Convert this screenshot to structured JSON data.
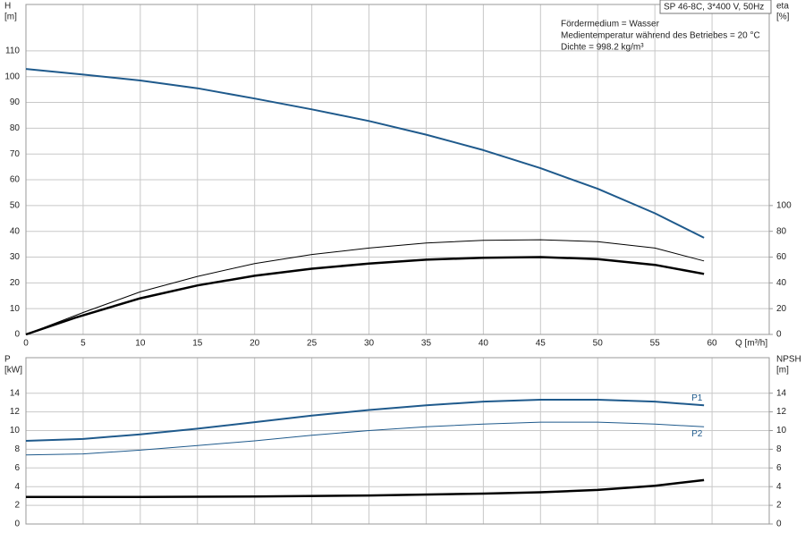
{
  "chart_data": [
    {
      "type": "line",
      "title": "SP 46-8C, 3*400 V, 50Hz",
      "annotations": [
        "Fördermedium = Wasser",
        "Medientemperatur während des Betriebes = 20 °C",
        "Dichte = 998.2 kg/m³"
      ],
      "y_label": "H",
      "y_unit": "[m]",
      "y2_label": "eta",
      "y2_unit": "[%]",
      "x_label": "Q [m³/h]",
      "xlim": [
        0,
        65
      ],
      "ylim": [
        0,
        128
      ],
      "y2lim": [
        0,
        256
      ],
      "xticks": [
        0,
        5,
        10,
        15,
        20,
        25,
        30,
        35,
        40,
        45,
        50,
        55,
        60
      ],
      "yticks": [
        0,
        10,
        20,
        30,
        40,
        50,
        60,
        70,
        80,
        90,
        100,
        110
      ],
      "y2ticks": [
        0,
        20,
        40,
        60,
        80,
        100
      ],
      "grid": true,
      "series": [
        {
          "color": "#1f5a8c",
          "linewidth": 2,
          "x": [
            0,
            5,
            10,
            15,
            20,
            25,
            30,
            35,
            40,
            45,
            50,
            55,
            59.3
          ],
          "values": [
            103,
            100.8,
            98.5,
            95.5,
            91.5,
            87.3,
            82.8,
            77.5,
            71.5,
            64.5,
            56.5,
            47,
            37.5
          ]
        },
        {
          "color": "#000000",
          "linewidth": 1,
          "axis": "y2",
          "x": [
            0,
            5,
            10,
            15,
            20,
            25,
            30,
            35,
            40,
            45,
            50,
            55,
            59.3
          ],
          "values": [
            0,
            17,
            33,
            45,
            55,
            62,
            67,
            71,
            73,
            73.5,
            72,
            67,
            57
          ]
        },
        {
          "color": "#000000",
          "linewidth": 2.5,
          "axis": "y2",
          "x": [
            0,
            4.3,
            10,
            15,
            20,
            25,
            30,
            35,
            40,
            45,
            50,
            55,
            59.3
          ],
          "values": [
            0,
            13,
            28,
            38,
            45.5,
            51,
            55,
            58,
            59.5,
            60,
            58.5,
            54,
            47
          ]
        }
      ]
    },
    {
      "type": "line",
      "y_label": "P",
      "y_unit": "[kW]",
      "y2_label": "NPSH",
      "y2_unit": "[m]",
      "xlim": [
        0,
        65
      ],
      "ylim": [
        0,
        17.8
      ],
      "y2lim": [
        0,
        17.8
      ],
      "xticks": [
        0,
        5,
        10,
        15,
        20,
        25,
        30,
        35,
        40,
        45,
        50,
        55,
        60
      ],
      "yticks": [
        0,
        2,
        4,
        6,
        8,
        10,
        12,
        14
      ],
      "y2ticks": [
        0,
        2,
        4,
        6,
        8,
        10,
        12,
        14
      ],
      "grid": true,
      "series": [
        {
          "name": "P1",
          "color": "#1f5a8c",
          "linewidth": 2,
          "x": [
            0,
            5,
            10,
            15,
            20,
            25,
            30,
            35,
            40,
            45,
            50,
            55,
            59.3
          ],
          "values": [
            8.9,
            9.1,
            9.6,
            10.2,
            10.9,
            11.6,
            12.2,
            12.7,
            13.1,
            13.3,
            13.3,
            13.1,
            12.7
          ]
        },
        {
          "name": "P2",
          "color": "#1f5a8c",
          "linewidth": 1,
          "x": [
            0,
            5,
            10,
            15,
            20,
            25,
            30,
            35,
            40,
            45,
            50,
            55,
            59.3
          ],
          "values": [
            7.4,
            7.5,
            7.9,
            8.4,
            8.9,
            9.5,
            10,
            10.4,
            10.7,
            10.9,
            10.9,
            10.7,
            10.4
          ]
        },
        {
          "color": "#000000",
          "linewidth": 2.5,
          "axis": "y2",
          "x": [
            0,
            5,
            10,
            20,
            30,
            40,
            45,
            50,
            55,
            59.3
          ],
          "values": [
            2.9,
            2.9,
            2.9,
            2.95,
            3.05,
            3.25,
            3.4,
            3.65,
            4.1,
            4.7
          ]
        }
      ]
    }
  ]
}
